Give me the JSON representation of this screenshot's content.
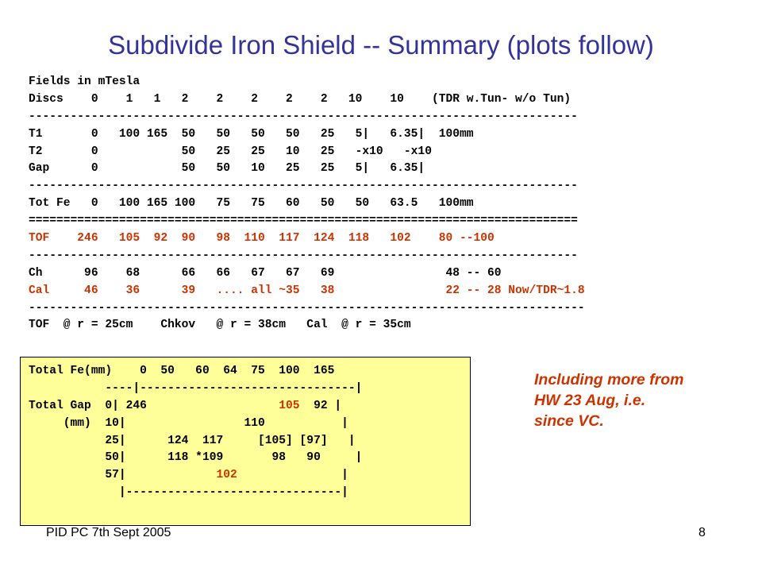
{
  "slide": {
    "title": "Subdivide Iron Shield -- Summary (plots follow)",
    "footer_left": "PID PC  7th Sept 2005",
    "page_number": "8"
  },
  "main_block": [
    {
      "text": "Fields in mTesla",
      "color": "black"
    },
    {
      "text": "Discs    0    1   1   2    2    2    2    2   10    10    (TDR w.Tun- w/o Tun)",
      "color": "black"
    },
    {
      "text": "-------------------------------------------------------------------------------",
      "color": "black"
    },
    {
      "text": "T1       0   100 165  50   50   50   50   25   5|   6.35|  100mm",
      "color": "black"
    },
    {
      "text": "T2       0            50   25   25   10   25   -x10   -x10",
      "color": "black"
    },
    {
      "text": "Gap      0            50   50   10   25   25   5|   6.35|",
      "color": "black"
    },
    {
      "text": "-------------------------------------------------------------------------------",
      "color": "black"
    },
    {
      "text": "Tot Fe   0   100 165 100   75   75   60   50   50   63.5   100mm",
      "color": "black"
    },
    {
      "text": "===============================================================================",
      "color": "black"
    },
    {
      "text": "TOF    246   105  92  90   98  110  117  124  118   102    80 --100",
      "color": "red"
    },
    {
      "text": "-------------------------------------------------------------------------------",
      "color": "black"
    },
    {
      "text": "Ch      96    68      66   66   67   67   69                48 -- 60",
      "color": "black"
    },
    {
      "text": "Cal     46    36      39   .... all ~35   38                22 -- 28 Now/TDR~1.8",
      "color": "red"
    },
    {
      "text": "--------------------------------------------------------------------------------",
      "color": "black"
    },
    {
      "text": "TOF  @ r = 25cm    Chkov   @ r = 38cm   Cal  @ r = 35cm",
      "color": "black"
    }
  ],
  "summary_box": {
    "lines": [
      {
        "parts": [
          {
            "text": "Total Fe(mm)    0  50   60  64  75  100  165",
            "color": "black"
          }
        ]
      },
      {
        "parts": [
          {
            "text": "           ----|-------------------------------|",
            "color": "black"
          }
        ]
      },
      {
        "parts": [
          {
            "text": "Total Gap  0| 246                   ",
            "color": "black"
          },
          {
            "text": "105",
            "color": "red"
          },
          {
            "text": "  92 |",
            "color": "black"
          }
        ]
      },
      {
        "parts": [
          {
            "text": "     (mm)  10|                 110           |",
            "color": "black"
          }
        ]
      },
      {
        "parts": [
          {
            "text": "           25|      124  117     [105] [97]   |",
            "color": "black"
          }
        ]
      },
      {
        "parts": [
          {
            "text": "           50|      118 *109       98   90     |",
            "color": "black"
          }
        ]
      },
      {
        "parts": [
          {
            "text": "           57|             ",
            "color": "black"
          },
          {
            "text": "102",
            "color": "red"
          },
          {
            "text": "               |",
            "color": "black"
          }
        ]
      },
      {
        "parts": [
          {
            "text": "             |-------------------------------|",
            "color": "black"
          }
        ]
      }
    ]
  },
  "note": "Including more from\nHW 23 Aug, i.e.\nsince VC.",
  "colors": {
    "title": "#333399",
    "red_text": "#cc3300",
    "box_background": "#ffff99"
  }
}
